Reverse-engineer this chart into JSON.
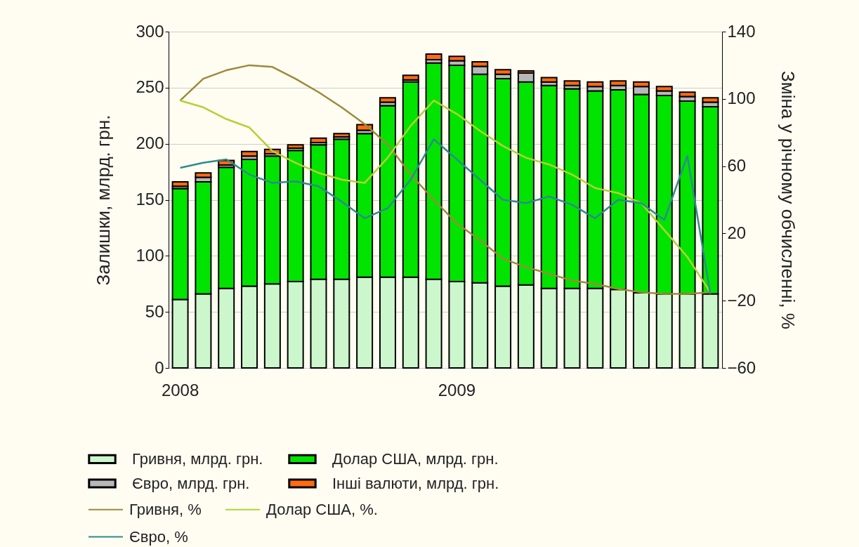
{
  "chart_data": {
    "type": "bar",
    "stacked": true,
    "ylabel": "Залишки, млрд. грн.",
    "y2label": "Зміна у річному обчисленні, %",
    "categories": [
      "2008",
      null,
      null,
      null,
      null,
      null,
      null,
      null,
      null,
      null,
      null,
      null,
      "2009",
      null,
      null,
      null,
      null,
      null,
      null,
      null,
      null,
      null,
      null,
      null
    ],
    "series": [
      {
        "name": "Гривня, млрд. грн.",
        "type": "bar",
        "color": "#ccf7cc",
        "values": [
          61,
          66,
          71,
          73,
          75,
          77,
          79,
          79,
          81,
          81,
          81,
          79,
          77,
          76,
          73,
          74,
          71,
          71,
          71,
          70,
          67,
          66,
          66,
          66
        ]
      },
      {
        "name": "Долар США, млрд. грн.",
        "type": "bar",
        "color": "#00e400",
        "values": [
          99,
          100,
          108,
          113,
          114,
          117,
          120,
          125,
          128,
          153,
          174,
          193,
          193,
          186,
          185,
          181,
          181,
          178,
          176,
          178,
          177,
          177,
          172,
          167
        ]
      },
      {
        "name": "Євро, млрд. грн.",
        "type": "bar",
        "color": "#b8b8b8",
        "values": [
          2,
          4,
          2,
          3,
          2,
          2,
          2,
          2,
          3,
          3,
          2,
          3,
          4,
          7,
          4,
          8,
          3,
          3,
          4,
          4,
          7,
          4,
          4,
          4
        ]
      },
      {
        "name": "Інші валюти, млрд. грн.",
        "type": "bar",
        "color": "#ff6a13",
        "values": [
          4,
          4,
          4,
          4,
          4,
          3,
          4,
          3,
          5,
          4,
          4,
          5,
          4,
          4,
          4,
          2,
          4,
          4,
          4,
          4,
          4,
          4,
          4,
          4
        ]
      },
      {
        "name": "Гривня, %",
        "type": "line",
        "axis": "y2",
        "color": "#9c8a3a",
        "values": [
          99,
          112,
          117,
          120,
          119,
          112,
          104,
          95,
          85,
          73,
          55,
          40,
          26,
          16,
          5,
          0,
          -4,
          -8,
          -10,
          -13,
          -15,
          -16,
          -16,
          -15
        ]
      },
      {
        "name": "Долар США, %.",
        "type": "line",
        "axis": "y2",
        "color": "#b2d235",
        "values": [
          99,
          95,
          88,
          83,
          69,
          62,
          56,
          52,
          50,
          65,
          84,
          99,
          91,
          81,
          72,
          65,
          61,
          55,
          47,
          44,
          38,
          22,
          6,
          -15
        ]
      },
      {
        "name": "Євро, %",
        "type": "line",
        "axis": "y2",
        "color": "#2e8b8b",
        "values": [
          59,
          62,
          64,
          55,
          50,
          51,
          48,
          39,
          29,
          35,
          52,
          76,
          64,
          52,
          40,
          38,
          42,
          37,
          29,
          40,
          38,
          28,
          66,
          -16
        ]
      }
    ],
    "ylim": [
      0,
      300
    ],
    "yticks": [
      0,
      50,
      100,
      150,
      200,
      250,
      300
    ],
    "y2lim": [
      -60,
      140
    ],
    "y2ticks": [
      -60,
      -20,
      20,
      60,
      100,
      140
    ],
    "grid": true,
    "legend": "bottom"
  }
}
